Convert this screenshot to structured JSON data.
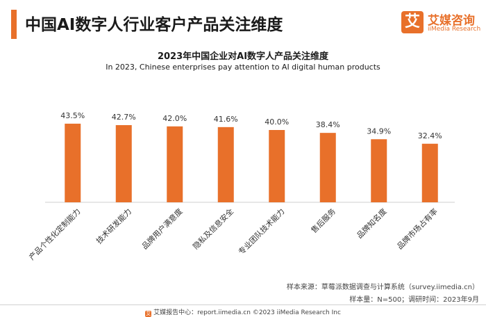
{
  "header": {
    "title": "中国AI数字人行业客户产品关注维度",
    "logo_mark": "艾",
    "logo_name": "艾媒咨询",
    "logo_sub": "iiMedia Research"
  },
  "chart_data": {
    "type": "bar",
    "title": "2023年中国企业对AI数字人产品关注维度",
    "subtitle": "In 2023, Chinese enterprises pay attention to AI digital human products",
    "categories": [
      "产品个性化定制能力",
      "技术研发能力",
      "品牌用户满意度",
      "隐私及信息安全",
      "专业团队技术能力",
      "售后服务",
      "品牌知名度",
      "品牌市场占有率"
    ],
    "values": [
      43.5,
      42.7,
      42.0,
      41.6,
      40.0,
      38.4,
      34.9,
      32.4
    ],
    "labels": [
      "43.5%",
      "42.7%",
      "42.0%",
      "41.6%",
      "40.0%",
      "38.4%",
      "34.9%",
      "32.4%"
    ],
    "unit": "%",
    "ylim": [
      0,
      50
    ],
    "bar_color": "#e8702a"
  },
  "notes": {
    "source": "样本来源：草莓派数据调查与计算系统（survey.iimedia.cn）",
    "sample": "样本量：N=500；调研时间：2023年9月"
  },
  "footer": {
    "text": "艾媒报告中心：report.iimedia.cn ©2023  iiMedia Research  Inc"
  },
  "colors": {
    "accent": "#e8702a"
  }
}
